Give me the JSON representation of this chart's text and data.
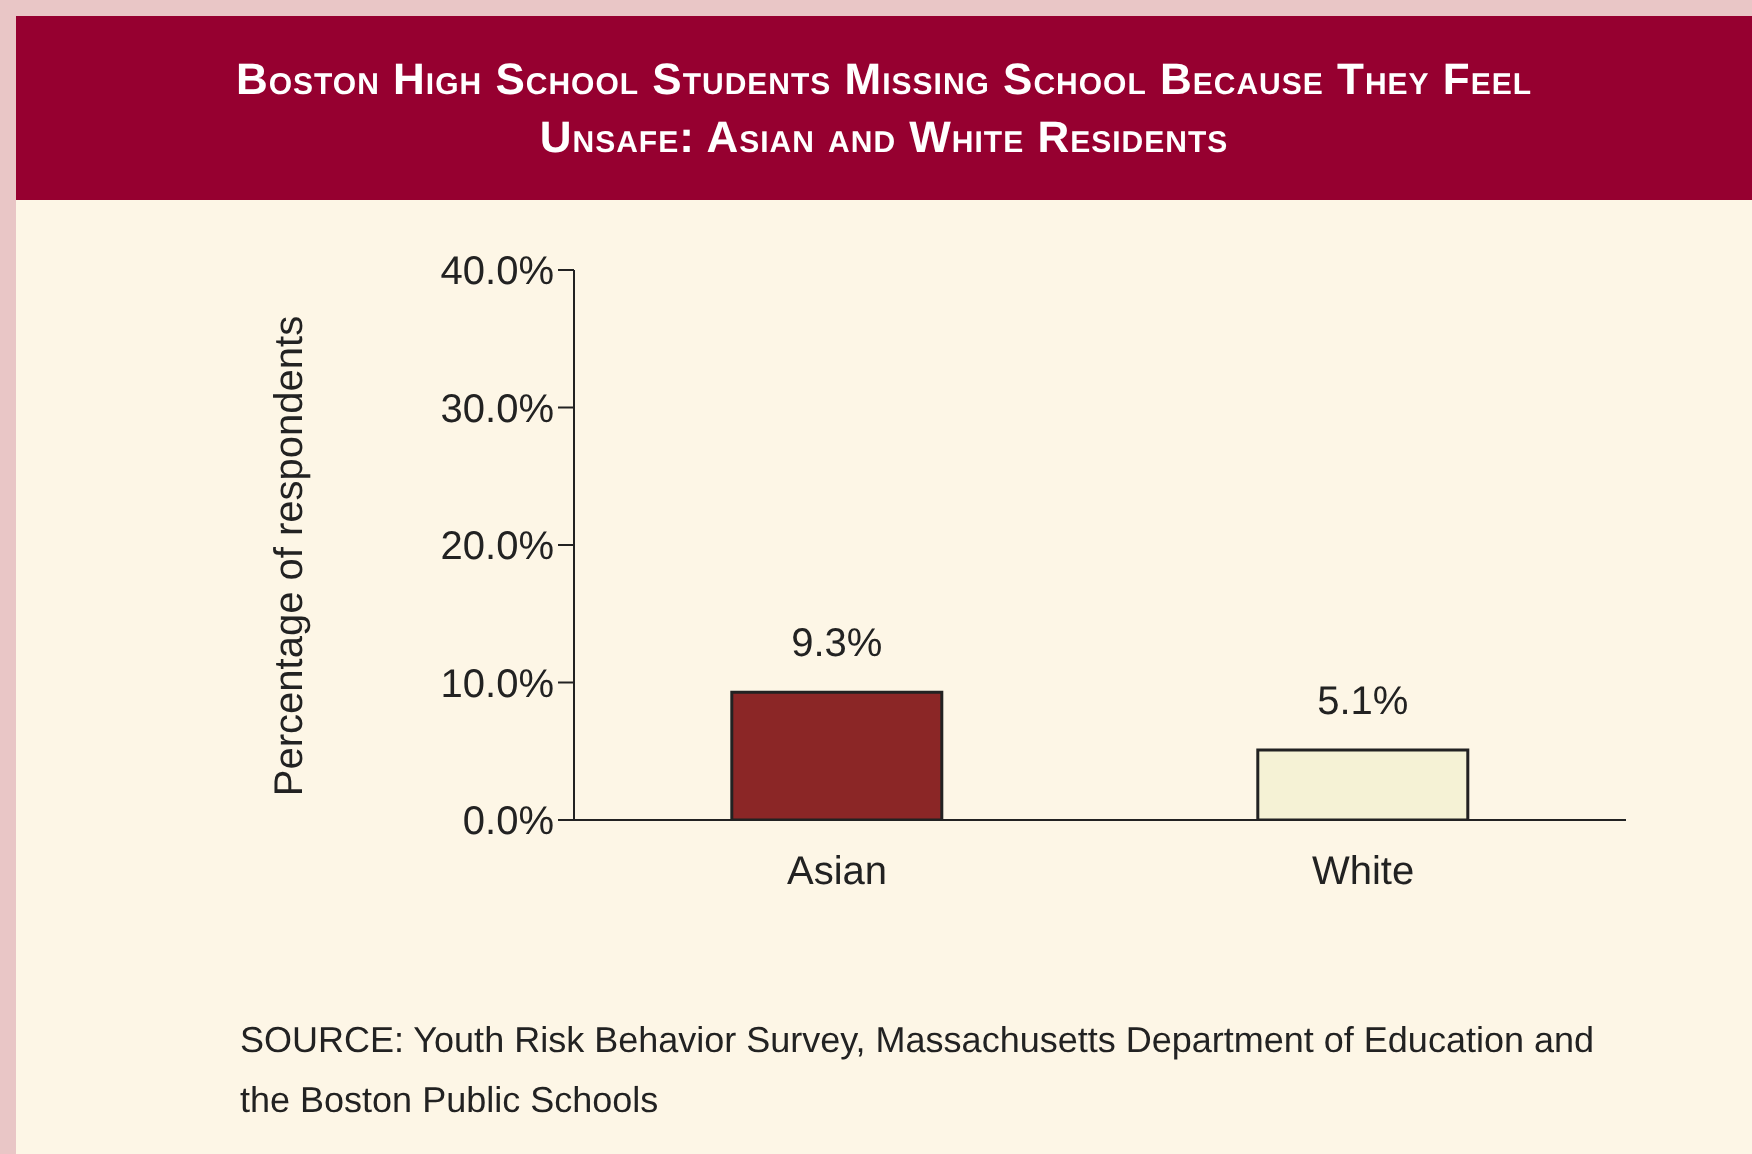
{
  "chart_data": {
    "type": "bar",
    "title": "Boston High School Students Missing School Because They Feel Unsafe: Asian and White Residents",
    "ylabel": "Percentage of respondents",
    "categories": [
      "Asian",
      "White"
    ],
    "values": [
      9.3,
      5.1
    ],
    "colors": [
      "#8b2626",
      "#f5f2d5"
    ],
    "value_labels": [
      "9.3%",
      "5.1%"
    ],
    "ylim": [
      0,
      40
    ],
    "yticks": [
      {
        "value": 0,
        "label": "0.0%"
      },
      {
        "value": 10,
        "label": "10.0%"
      },
      {
        "value": 20,
        "label": "20.0%"
      },
      {
        "value": 30,
        "label": "30.0%"
      },
      {
        "value": 40,
        "label": "40.0%"
      }
    ],
    "grid": false,
    "legend": false,
    "annotations": [
      "SOURCE:  Youth Risk Behavior Survey, Massachusetts Department of Education and the Boston Public Schools"
    ]
  }
}
